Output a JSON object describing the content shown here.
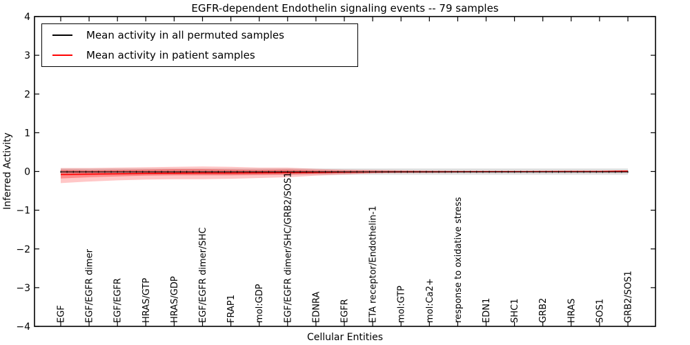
{
  "figure": {
    "title": "EGFR-dependent Endothelin signaling events -- 79 samples",
    "xlabel": "Cellular Entities",
    "ylabel": "Inferred Activity"
  },
  "legend": {
    "entries": [
      {
        "label": "Mean activity in all permuted samples",
        "color": "#000000"
      },
      {
        "label": "Mean activity in patient samples",
        "color": "#ff0000"
      }
    ]
  },
  "chart_data": {
    "type": "line",
    "title": "EGFR-dependent Endothelin signaling events -- 79 samples",
    "xlabel": "Cellular Entities",
    "ylabel": "Inferred Activity",
    "ylim": [
      -4,
      4
    ],
    "yticks": [
      4,
      3,
      2,
      1,
      0,
      -1,
      -2,
      -3,
      -4
    ],
    "ytick_labels": [
      "4",
      "3",
      "2",
      "1",
      "0",
      "−1",
      "−2",
      "−3",
      "−4"
    ],
    "grid": false,
    "legend_position": "upper left",
    "categories": [
      "EGF",
      "EGF/EGFR dimer",
      "EGF/EGFR",
      "HRAS/GTP",
      "HRAS/GDP",
      "EGF/EGFR dimer/SHC",
      "FRAP1",
      "mol:GDP",
      "EGF/EGFR dimer/SHC/GRB2/SOS1",
      "EDNRA",
      "EGFR",
      "ETA receptor/Endothelin-1",
      "mol:GTP",
      "mol:Ca2+",
      "response to oxidative stress",
      "EDN1",
      "SHC1",
      "GRB2",
      "HRAS",
      "SOS1",
      "GRB2/SOS1"
    ],
    "series": [
      {
        "name": "Mean activity in all permuted samples",
        "color": "#000000",
        "band_color": "rgba(0,0,0,0.13)",
        "values": [
          -0.01,
          -0.01,
          -0.01,
          -0.01,
          -0.01,
          -0.01,
          -0.01,
          -0.01,
          -0.01,
          -0.01,
          -0.01,
          -0.01,
          -0.01,
          -0.01,
          -0.01,
          -0.01,
          -0.01,
          -0.01,
          -0.01,
          -0.01,
          -0.01
        ],
        "band_upper": [
          0.075,
          0.075,
          0.075,
          0.075,
          0.075,
          0.075,
          0.075,
          0.075,
          0.075,
          0.075,
          0.075,
          0.075,
          0.075,
          0.075,
          0.075,
          0.075,
          0.075,
          0.075,
          0.075,
          0.075,
          0.075
        ],
        "band_lower": [
          -0.085,
          -0.085,
          -0.085,
          -0.085,
          -0.085,
          -0.085,
          -0.085,
          -0.085,
          -0.085,
          -0.085,
          -0.085,
          -0.085,
          -0.085,
          -0.085,
          -0.085,
          -0.085,
          -0.085,
          -0.085,
          -0.085,
          -0.085,
          -0.085
        ]
      },
      {
        "name": "Mean activity in patient samples",
        "color": "#ff0000",
        "outer_band_color": "rgba(255,0,0,0.22)",
        "inner_band_color": "rgba(255,0,0,0.30)",
        "values": [
          -0.08,
          -0.07,
          -0.06,
          -0.05,
          -0.045,
          -0.04,
          -0.04,
          -0.035,
          -0.03,
          -0.025,
          -0.02,
          -0.015,
          -0.01,
          -0.01,
          -0.008,
          -0.006,
          -0.005,
          -0.004,
          -0.002,
          0.0,
          0.01
        ],
        "outer_upper": [
          0.09,
          0.09,
          0.1,
          0.11,
          0.12,
          0.13,
          0.12,
          0.1,
          0.1,
          0.07,
          0.05,
          0.04,
          0.03,
          0.025,
          0.02,
          0.02,
          0.02,
          0.02,
          0.02,
          0.02,
          0.02
        ],
        "outer_lower": [
          -0.3,
          -0.26,
          -0.23,
          -0.21,
          -0.2,
          -0.2,
          -0.19,
          -0.17,
          -0.15,
          -0.11,
          -0.08,
          -0.05,
          -0.04,
          -0.035,
          -0.03,
          -0.03,
          -0.03,
          -0.03,
          -0.03,
          -0.03,
          -0.03
        ],
        "inner_upper": [
          0.04,
          0.03,
          0.04,
          0.05,
          0.06,
          0.06,
          0.05,
          0.04,
          0.05,
          0.03,
          0.02,
          0.02,
          0.015,
          0.012,
          0.01,
          0.01,
          0.01,
          0.01,
          0.01,
          0.01,
          0.01
        ],
        "inner_lower": [
          -0.18,
          -0.15,
          -0.13,
          -0.11,
          -0.1,
          -0.1,
          -0.1,
          -0.09,
          -0.08,
          -0.06,
          -0.04,
          -0.03,
          -0.025,
          -0.02,
          -0.018,
          -0.016,
          -0.015,
          -0.015,
          -0.015,
          -0.015,
          -0.015
        ]
      }
    ]
  }
}
